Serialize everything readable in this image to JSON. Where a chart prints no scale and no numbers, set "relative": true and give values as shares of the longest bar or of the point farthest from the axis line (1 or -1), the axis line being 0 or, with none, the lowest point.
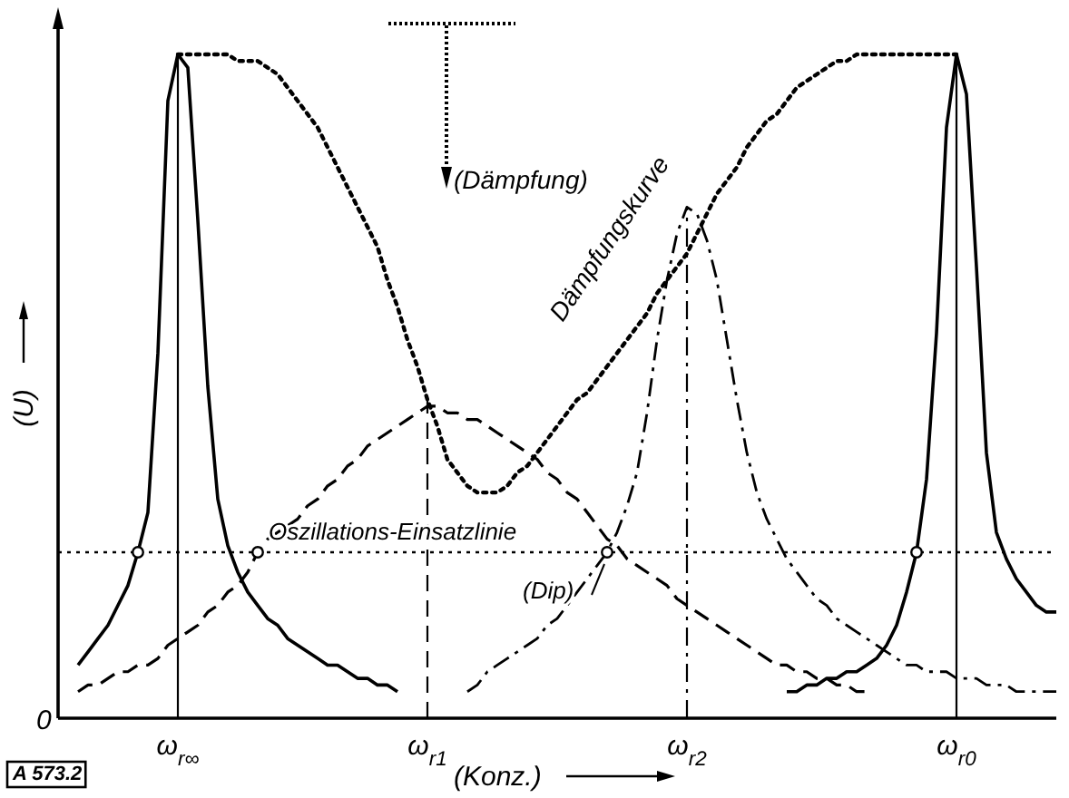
{
  "chart_data": {
    "type": "line",
    "relative": true,
    "xlabel": "(Konz.)",
    "ylabel": "(U)",
    "categories": [
      null,
      null,
      null,
      null,
      null,
      null,
      null,
      null,
      null,
      null,
      null,
      null,
      "ω$_{r∞}$",
      null,
      null,
      null,
      null,
      null,
      null,
      null,
      null,
      null,
      null,
      null,
      null,
      null,
      null,
      null,
      null,
      null,
      null,
      null,
      null,
      null,
      null,
      null,
      null,
      "ω$_{r1}$",
      null,
      null,
      null,
      null,
      null,
      null,
      null,
      null,
      null,
      null,
      null,
      null,
      null,
      null,
      null,
      null,
      null,
      null,
      null,
      null,
      null,
      null,
      null,
      null,
      null,
      "ω$_{r2}$",
      null,
      null,
      null,
      null,
      null,
      null,
      null,
      null,
      null,
      null,
      null,
      null,
      null,
      null,
      null,
      null,
      null,
      null,
      null,
      null,
      null,
      null,
      null,
      null,
      null,
      null,
      "ω$_{r0}$",
      null,
      null,
      null,
      null,
      null,
      null,
      null,
      null,
      null,
      null
    ],
    "ref_lines": [
      {
        "axis": "y",
        "value": 0.25,
        "label": "Oszillations-Einsatzlinie",
        "line_style": "dotted",
        "color": "#000000"
      },
      {
        "axis": "x",
        "value": "ω$_{r∞}$",
        "line_style": "solid",
        "color": "#000000"
      },
      {
        "axis": "x",
        "value": "ω$_{r1}$",
        "line_style": "dashed",
        "color": "#000000"
      },
      {
        "axis": "x",
        "value": "ω$_{r2}$",
        "line_style": "dashdot",
        "color": "#000000"
      },
      {
        "axis": "x",
        "value": "ω$_{r0}$",
        "line_style": "solid",
        "color": "#000000"
      }
    ],
    "annotations": [
      "0",
      "(Dämpfung)",
      "Dämpfungskurve",
      "(Dip)",
      "A 573.2"
    ],
    "series": [
      {
        "color": "#000000",
        "line_style": "solid",
        "values": [
          null,
          null,
          0.08,
          0.1,
          0.12,
          0.14,
          0.17,
          0.2,
          0.25,
          0.31,
          0.55,
          0.93,
          1,
          0.98,
          0.75,
          0.5,
          0.33,
          0.26,
          0.22,
          0.19,
          0.17,
          0.15,
          0.14,
          0.12,
          0.11,
          0.1,
          0.09,
          0.08,
          0.08,
          0.07,
          0.06,
          0.06,
          0.05,
          0.05,
          0.04,
          null,
          null,
          null,
          null,
          null,
          null,
          null,
          null,
          null,
          null,
          null,
          null,
          null,
          null,
          null,
          null,
          null,
          null,
          null,
          null,
          null,
          null,
          null,
          null,
          null,
          null,
          null,
          null,
          null,
          null,
          null,
          null,
          null,
          null,
          null,
          null,
          null,
          null,
          null,
          null,
          null,
          null,
          null,
          null,
          null,
          null,
          null,
          null,
          null,
          null,
          null,
          null,
          null,
          null,
          null,
          null,
          null,
          null,
          null,
          null,
          null,
          null,
          null,
          null,
          null,
          null
        ]
      },
      {
        "color": "#000000",
        "line_style": "solid",
        "values": [
          null,
          null,
          null,
          null,
          null,
          null,
          null,
          null,
          null,
          null,
          null,
          null,
          null,
          null,
          null,
          null,
          null,
          null,
          null,
          null,
          null,
          null,
          null,
          null,
          null,
          null,
          null,
          null,
          null,
          null,
          null,
          null,
          null,
          null,
          null,
          null,
          null,
          null,
          null,
          null,
          null,
          null,
          null,
          null,
          null,
          null,
          null,
          null,
          null,
          null,
          null,
          null,
          null,
          null,
          null,
          null,
          null,
          null,
          null,
          null,
          null,
          null,
          null,
          null,
          null,
          null,
          null,
          null,
          null,
          null,
          null,
          null,
          null,
          0.04,
          0.04,
          0.05,
          0.05,
          0.06,
          0.06,
          0.07,
          0.07,
          0.08,
          0.09,
          0.11,
          0.14,
          0.19,
          0.25,
          0.36,
          0.58,
          0.89,
          1,
          0.94,
          0.68,
          0.4,
          0.28,
          0.24,
          0.21,
          0.19,
          0.17,
          0.16,
          0.16
        ]
      },
      {
        "color": "#000000",
        "line_style": "dashed",
        "values": [
          null,
          null,
          0.04,
          0.05,
          0.05,
          0.06,
          0.07,
          0.07,
          0.08,
          0.08,
          0.09,
          0.11,
          0.12,
          0.13,
          0.14,
          0.16,
          0.17,
          0.19,
          0.2,
          0.22,
          0.25,
          0.27,
          0.28,
          0.29,
          0.3,
          0.32,
          0.33,
          0.35,
          0.36,
          0.38,
          0.39,
          0.41,
          0.42,
          0.43,
          0.44,
          0.45,
          0.46,
          0.47,
          0.47,
          0.46,
          0.46,
          0.45,
          0.45,
          0.44,
          0.43,
          0.42,
          0.41,
          0.4,
          0.39,
          0.37,
          0.36,
          0.34,
          0.33,
          0.31,
          0.29,
          0.27,
          0.26,
          0.24,
          0.23,
          0.22,
          0.21,
          0.2,
          0.18,
          0.17,
          0.16,
          0.15,
          0.14,
          0.13,
          0.12,
          0.11,
          0.1,
          0.09,
          0.08,
          0.08,
          0.07,
          0.07,
          0.06,
          0.06,
          0.05,
          0.05,
          0.04,
          0.04,
          null,
          null,
          null,
          null,
          null,
          null,
          null,
          null,
          null,
          null,
          null,
          null,
          null,
          null,
          null,
          null,
          null,
          null,
          null
        ]
      },
      {
        "color": "#000000",
        "line_style": "dashdot",
        "values": [
          null,
          null,
          null,
          null,
          null,
          null,
          null,
          null,
          null,
          null,
          null,
          null,
          null,
          null,
          null,
          null,
          null,
          null,
          null,
          null,
          null,
          null,
          null,
          null,
          null,
          null,
          null,
          null,
          null,
          null,
          null,
          null,
          null,
          null,
          null,
          null,
          null,
          null,
          null,
          null,
          null,
          0.04,
          0.05,
          0.07,
          0.08,
          0.09,
          0.1,
          0.11,
          0.12,
          0.14,
          0.15,
          0.17,
          0.19,
          0.21,
          0.23,
          0.25,
          0.28,
          0.32,
          0.37,
          0.46,
          0.57,
          0.66,
          0.73,
          0.77,
          0.76,
          0.72,
          0.66,
          0.57,
          0.48,
          0.4,
          0.34,
          0.3,
          0.27,
          0.24,
          0.22,
          0.2,
          0.18,
          0.17,
          0.15,
          0.14,
          0.13,
          0.12,
          0.11,
          0.1,
          0.09,
          0.08,
          0.08,
          0.07,
          0.07,
          0.07,
          0.06,
          0.06,
          0.06,
          0.05,
          0.05,
          0.05,
          0.04,
          0.04,
          0.04,
          0.04,
          0.04
        ]
      },
      {
        "color": "#000000",
        "line_style": "dotted",
        "values": [
          null,
          null,
          null,
          null,
          null,
          null,
          null,
          null,
          null,
          null,
          null,
          null,
          1,
          1,
          1,
          1,
          1,
          1,
          0.99,
          0.99,
          0.99,
          0.98,
          0.97,
          0.95,
          0.93,
          0.91,
          0.89,
          0.86,
          0.83,
          0.8,
          0.77,
          0.74,
          0.71,
          0.66,
          0.62,
          0.57,
          0.53,
          0.48,
          0.44,
          0.39,
          0.37,
          0.35,
          0.34,
          0.34,
          0.34,
          0.35,
          0.37,
          0.38,
          0.4,
          0.42,
          0.44,
          0.46,
          0.48,
          0.49,
          0.51,
          0.53,
          0.55,
          0.57,
          0.59,
          0.61,
          0.64,
          0.66,
          0.68,
          0.7,
          0.73,
          0.76,
          0.79,
          0.81,
          0.83,
          0.86,
          0.88,
          0.9,
          0.91,
          0.93,
          0.95,
          0.96,
          0.97,
          0.98,
          0.99,
          0.99,
          1,
          1,
          1,
          1,
          1,
          1,
          1,
          1,
          1,
          1,
          1,
          null,
          null,
          null,
          null,
          null,
          null,
          null,
          null,
          null,
          null
        ]
      },
      {
        "type": "scatter",
        "color": "#000000",
        "marker": "circle",
        "values": [
          null,
          null,
          null,
          null,
          null,
          null,
          null,
          null,
          0.25,
          null,
          null,
          null,
          null,
          null,
          null,
          null,
          null,
          null,
          null,
          null,
          0.25,
          null,
          null,
          null,
          null,
          null,
          null,
          null,
          null,
          null,
          null,
          null,
          null,
          null,
          null,
          null,
          null,
          null,
          null,
          null,
          null,
          null,
          null,
          null,
          null,
          null,
          null,
          null,
          null,
          null,
          null,
          null,
          null,
          null,
          null,
          0.25,
          null,
          null,
          null,
          null,
          null,
          null,
          null,
          null,
          null,
          null,
          null,
          null,
          null,
          null,
          null,
          null,
          null,
          null,
          null,
          null,
          null,
          null,
          null,
          null,
          null,
          null,
          null,
          null,
          null,
          null,
          0.25,
          null,
          null,
          null,
          null,
          null,
          null,
          null,
          null,
          null,
          null,
          null,
          null,
          null,
          null
        ]
      }
    ]
  }
}
